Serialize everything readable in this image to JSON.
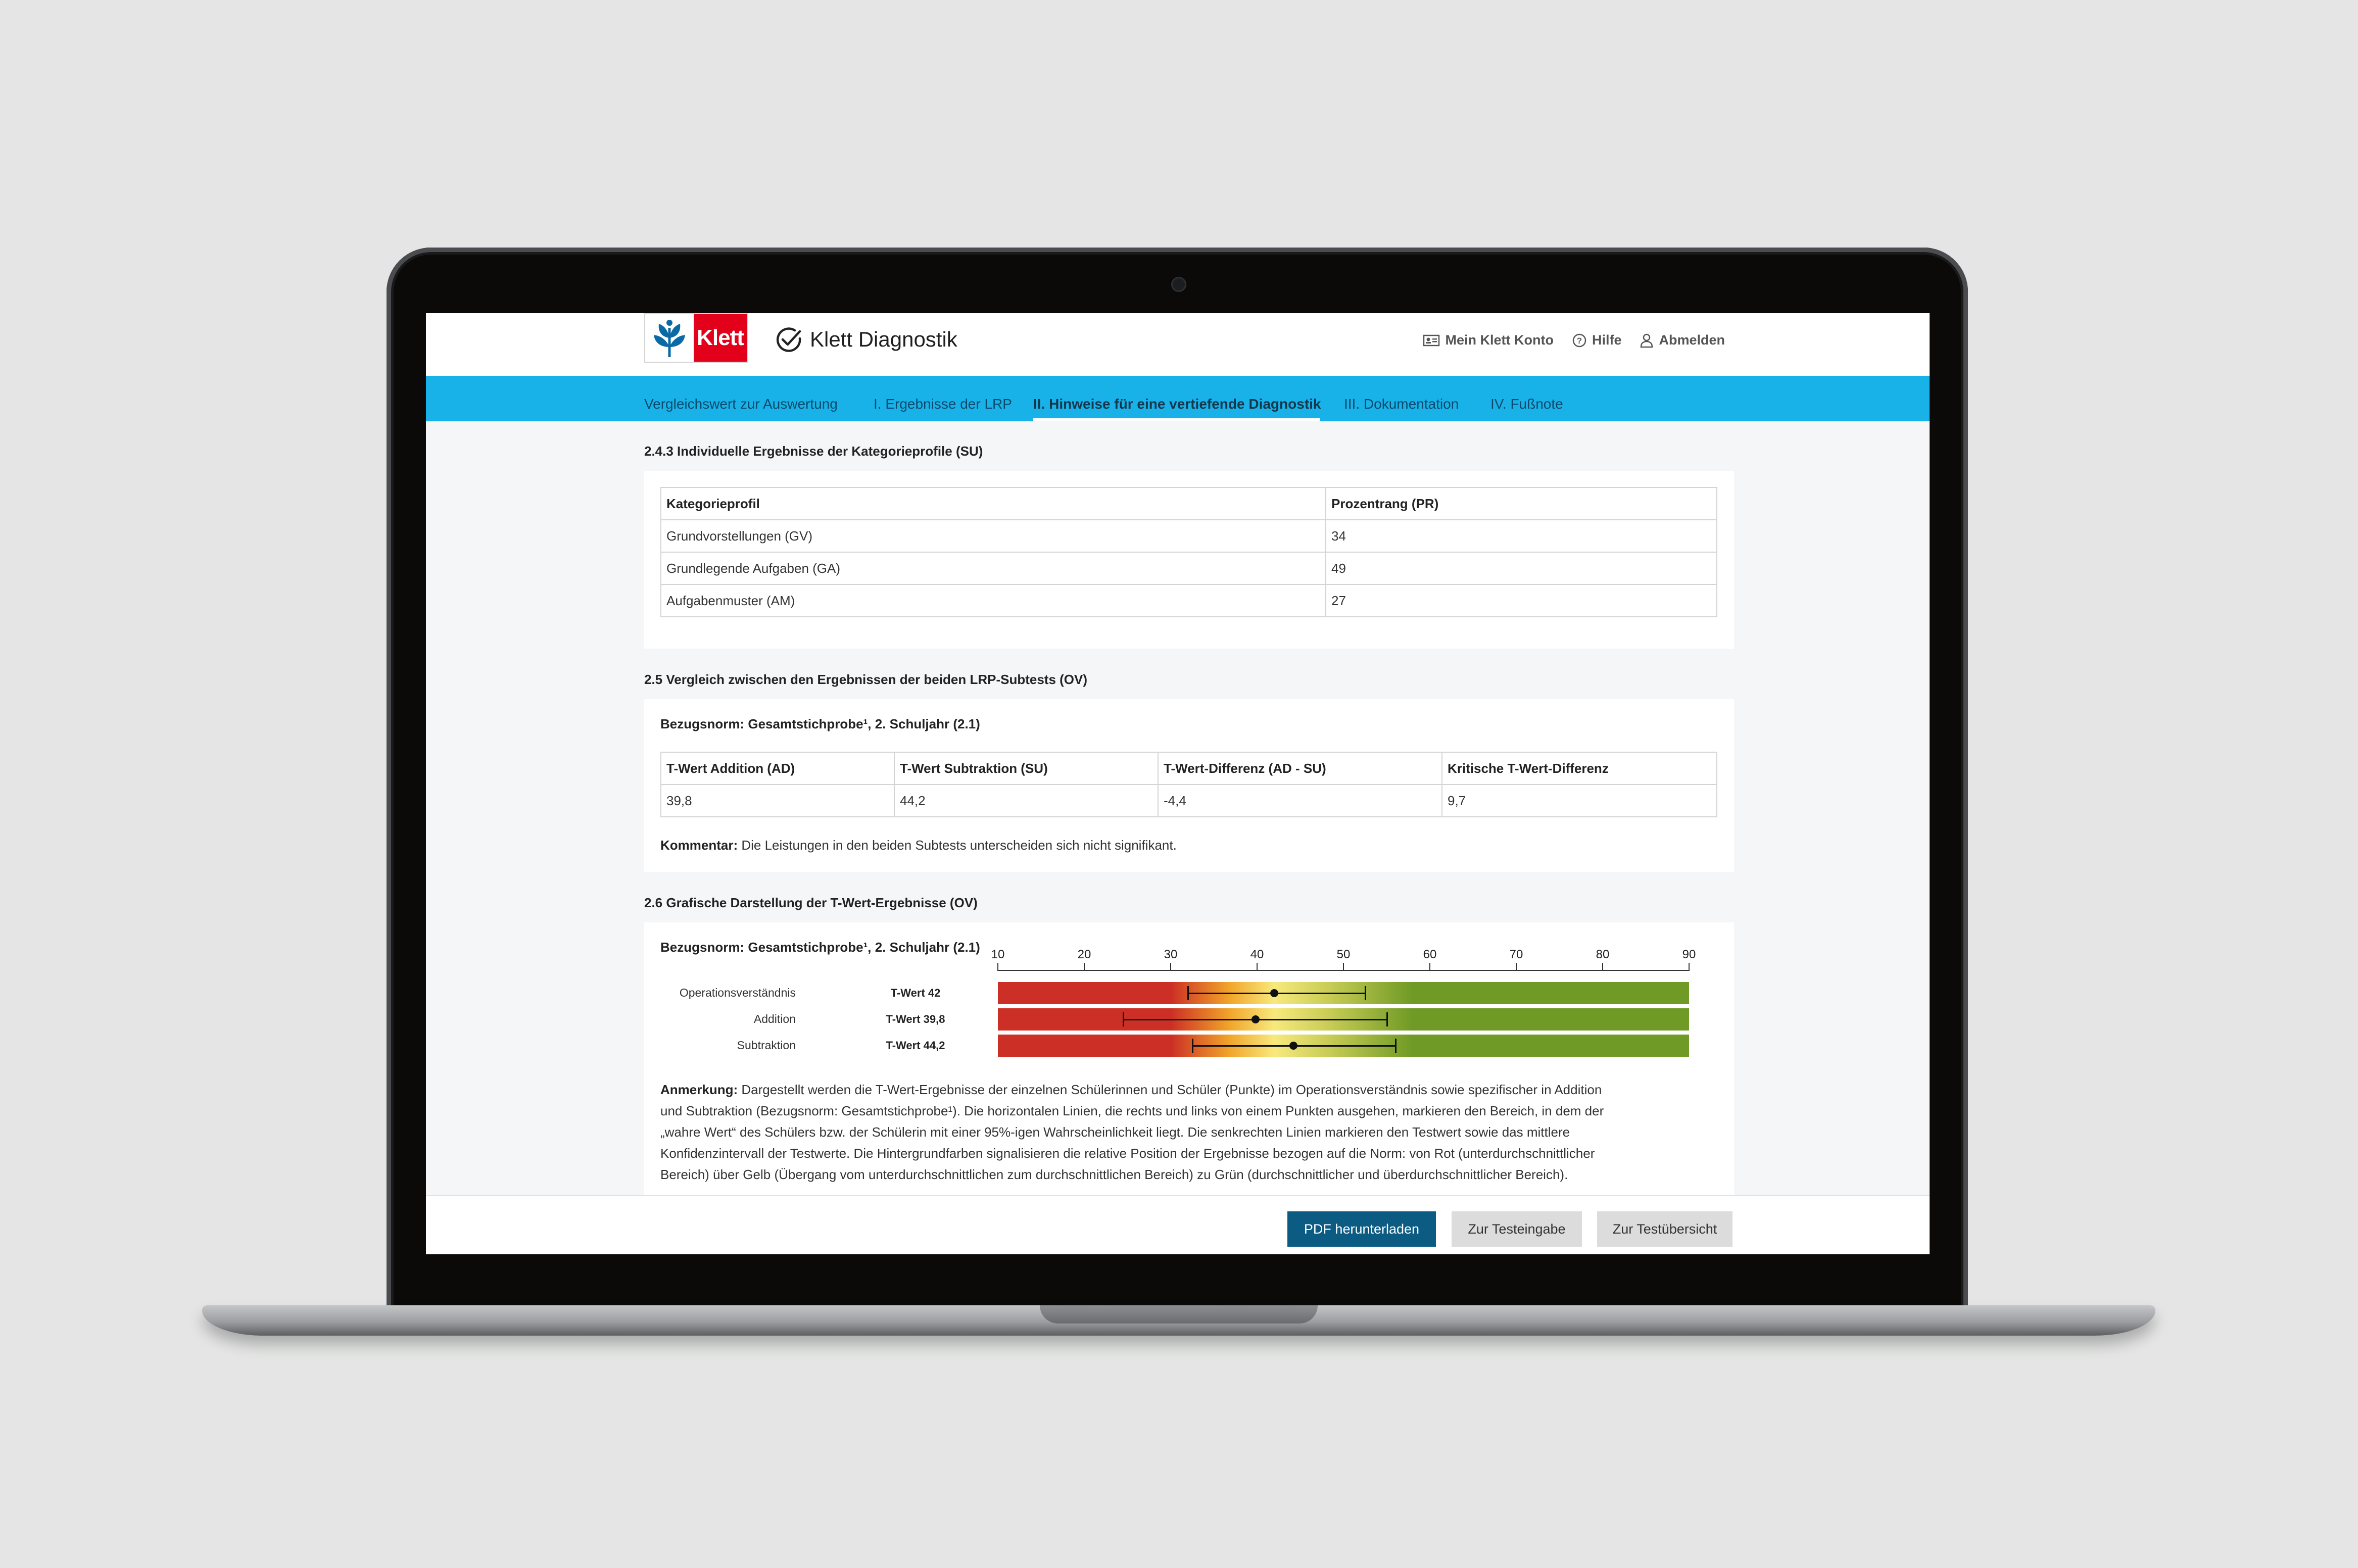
{
  "header": {
    "logo_text": "Klett",
    "brand": "Klett Diagnostik",
    "nav": [
      {
        "label": "Mein Klett Konto",
        "icon": "id-card-icon"
      },
      {
        "label": "Hilfe",
        "icon": "help-icon"
      },
      {
        "label": "Abmelden",
        "icon": "user-icon"
      }
    ]
  },
  "tabs": [
    {
      "label": "Vergleichswert zur Auswertung",
      "active": false
    },
    {
      "label": "I. Ergebnisse der LRP",
      "active": false
    },
    {
      "label": "II. Hinweise für eine vertiefende Diagnostik",
      "active": true
    },
    {
      "label": "III. Dokumentation",
      "active": false
    },
    {
      "label": "IV. Fußnote",
      "active": false
    }
  ],
  "section_243": {
    "title": "2.4.3 Individuelle Ergebnisse der Kategorieprofile (SU)",
    "headers": [
      "Kategorieprofil",
      "Prozentrang (PR)"
    ],
    "rows": [
      [
        "Grundvorstellungen (GV)",
        "34"
      ],
      [
        "Grundlegende Aufgaben (GA)",
        "49"
      ],
      [
        "Aufgabenmuster (AM)",
        "27"
      ]
    ]
  },
  "section_25": {
    "title": "2.5 Vergleich zwischen den Ergebnissen der beiden LRP-Subtests (OV)",
    "norm": "Bezugsnorm: Gesamtstichprobe¹, 2. Schuljahr (2.1)",
    "headers": [
      "T-Wert Addition (AD)",
      "T-Wert Subtraktion (SU)",
      "T-Wert-Differenz (AD - SU)",
      "Kritische T-Wert-Differenz"
    ],
    "row": [
      "39,8",
      "44,2",
      "-4,4",
      "9,7"
    ],
    "comment_label": "Kommentar:",
    "comment": " Die Leistungen in den beiden Subtests unterscheiden sich nicht signifikant."
  },
  "section_26": {
    "title": "2.6 Grafische Darstellung der T-Wert-Ergebnisse (OV)",
    "norm": "Bezugsnorm: Gesamtstichprobe¹, 2. Schuljahr (2.1)",
    "note_label": "Anmerkung:",
    "note_lines": [
      " Dargestellt werden die T-Wert-Ergebnisse der einzelnen Schülerinnen und Schüler (Punkte) im Operationsverständnis sowie spezifischer in Addition",
      "und Subtraktion (Bezugsnorm: Gesamtstichprobe¹). Die horizontalen Linien, die rechts und links von einem Punkten ausgehen, markieren den Bereich, in dem der",
      "„wahre Wert“ des Schülers bzw. der Schülerin mit einer 95%-igen Wahrscheinlichkeit liegt. Die senkrechten Linien markieren den Testwert sowie das mittlere",
      "Konfidenzintervall der Testwerte. Die Hintergrundfarben signalisieren die relative Position der Ergebnisse bezogen auf die Norm: von Rot (unterdurchschnittlicher",
      "Bereich) über Gelb (Übergang vom unterdurchschnittlichen zum durchschnittlichen Bereich) zu Grün (durchschnittlicher und überdurchschnittlicher Bereich)."
    ]
  },
  "chart_data": {
    "type": "scatter",
    "x_ticks": [
      "10",
      "20",
      "30",
      "40",
      "50",
      "60",
      "70",
      "80",
      "90"
    ],
    "xlim": [
      10,
      90
    ],
    "series": [
      {
        "name": "Operationsverständnis",
        "tlabel": "T-Wert 42",
        "value": 42,
        "ci": [
          32,
          52.5
        ]
      },
      {
        "name": "Addition",
        "tlabel": "T-Wert 39,8",
        "value": 39.8,
        "ci": [
          24.5,
          55
        ]
      },
      {
        "name": "Subtraktion",
        "tlabel": "T-Wert 44,2",
        "value": 44.2,
        "ci": [
          32.5,
          56
        ]
      }
    ],
    "colors": {
      "low": "#cc2f25",
      "mid": "#f8e97d",
      "high": "#6f9a25"
    }
  },
  "footer": {
    "pdf": "PDF herunterladen",
    "testeingabe": "Zur Testeingabe",
    "testuebersicht": "Zur Testübersicht"
  },
  "colors": {
    "tabbar": "#19b2e8",
    "primary_button": "#0b5b83",
    "klett_red": "#e2001a"
  }
}
